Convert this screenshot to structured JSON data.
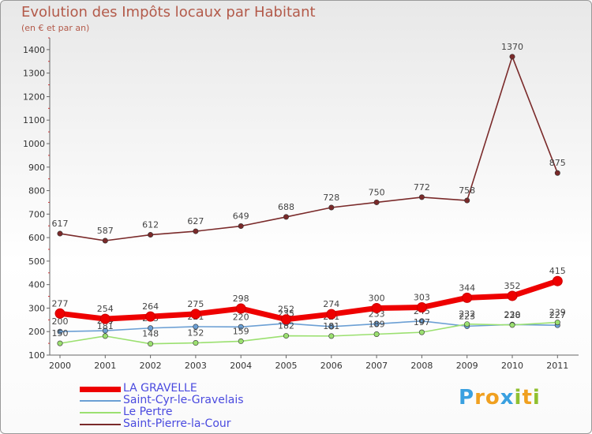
{
  "chart_data": {
    "type": "line",
    "title": "Evolution des Impôts locaux par Habitant",
    "subtitle": "(en € et par an)",
    "xlabel": "",
    "ylabel": "",
    "ylim": [
      100,
      1450
    ],
    "yticks": [
      100,
      200,
      300,
      400,
      500,
      600,
      700,
      800,
      900,
      1000,
      1100,
      1200,
      1300,
      1400
    ],
    "categories": [
      "2000",
      "2001",
      "2002",
      "2003",
      "2004",
      "2005",
      "2006",
      "2007",
      "2008",
      "2009",
      "2010",
      "2011"
    ],
    "series": [
      {
        "name": "Saint-Pierre-la-Cour",
        "color": "#7a2a2a",
        "values": [
          617,
          587,
          612,
          627,
          649,
          688,
          728,
          750,
          772,
          758,
          1370,
          875
        ]
      },
      {
        "name": "Saint-Cyr-le-Gravelais",
        "color": "#6b9fd4",
        "values": [
          200,
          204,
          215,
          221,
          220,
          235,
          221,
          233,
          245,
          223,
          230,
          227
        ]
      },
      {
        "name": "Le Pertre",
        "color": "#9be070",
        "values": [
          150,
          181,
          148,
          152,
          159,
          182,
          181,
          189,
          197,
          232,
          228,
          239
        ]
      },
      {
        "name": "LA GRAVELLE",
        "color": "#ee0000",
        "values": [
          277,
          254,
          264,
          275,
          298,
          252,
          274,
          300,
          303,
          344,
          352,
          415
        ]
      }
    ],
    "legend_order": [
      "LA GRAVELLE",
      "Saint-Cyr-le-Gravelais",
      "Le Pertre",
      "Saint-Pierre-la-Cour"
    ],
    "legend_position": "bottom-left",
    "grid": false
  },
  "brand": {
    "letters": [
      "P",
      "r",
      "o",
      "x",
      "i",
      "t",
      "i"
    ],
    "colors": [
      "#3aa0e0",
      "#f0a020",
      "#f0a020",
      "#3aa0e0",
      "#90c030",
      "#f0a020",
      "#90c030"
    ]
  }
}
